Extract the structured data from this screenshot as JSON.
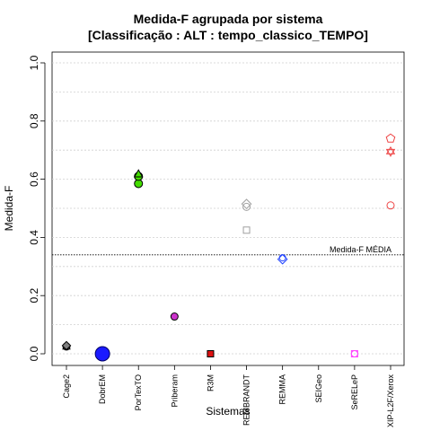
{
  "chart_data": {
    "type": "scatter",
    "title_line1": "Medida-F agrupada por sistema",
    "title_line2": "[Classificação : ALT : tempo_classico_TEMPO]",
    "xlabel": "Sistemas",
    "ylabel": "Medida-F",
    "ylim": [
      0,
      1
    ],
    "y_ticks": [
      "0.0",
      "0.2",
      "0.4",
      "0.6",
      "0.8",
      "1.0"
    ],
    "grid": "horizontal dotted",
    "categories": [
      "Cage2",
      "DobrEM",
      "PorTexTO",
      "Priberam",
      "R3M",
      "REMBRANDT",
      "REMMA",
      "SEIGeo",
      "SeRELeP",
      "XIP-L2F/Xerox"
    ],
    "reference_line": {
      "label": "Medida-F MÉDIA",
      "value": 0.34
    },
    "points": [
      {
        "category": "Cage2",
        "y": 0.025,
        "shape": "circle",
        "fill": "#808080",
        "stroke": "#000000",
        "size": 4
      },
      {
        "category": "Cage2",
        "y": 0.025,
        "shape": "triangle",
        "fill": "#808080",
        "stroke": "#000000",
        "size": 4
      },
      {
        "category": "Cage2",
        "y": 0.028,
        "shape": "diamond",
        "fill": "#808080",
        "stroke": "#000000",
        "size": 4
      },
      {
        "category": "DobrEM",
        "y": 0.0,
        "shape": "circle",
        "fill": "#1a1aff",
        "stroke": "#000066",
        "size": 8
      },
      {
        "category": "PorTexTO",
        "y": 0.585,
        "shape": "circle",
        "fill": "#44dd00",
        "stroke": "#000000",
        "size": 4.5
      },
      {
        "category": "PorTexTO",
        "y": 0.61,
        "shape": "circle",
        "fill": "#44dd00",
        "stroke": "#000000",
        "size": 4.5
      },
      {
        "category": "PorTexTO",
        "y": 0.618,
        "shape": "triangle",
        "fill": "#44dd00",
        "stroke": "#000000",
        "size": 4.5
      },
      {
        "category": "Priberam",
        "y": 0.128,
        "shape": "circle",
        "fill": "#cc33cc",
        "stroke": "#000000",
        "size": 4
      },
      {
        "category": "R3M",
        "y": 0.0,
        "shape": "square",
        "fill": "#dd1111",
        "stroke": "#000000",
        "size": 3.5
      },
      {
        "category": "REMBRANDT",
        "y": 0.505,
        "shape": "circle",
        "fill": "none",
        "stroke": "#a0a0a0",
        "size": 4
      },
      {
        "category": "REMBRANDT",
        "y": 0.515,
        "shape": "diamond",
        "fill": "none",
        "stroke": "#a0a0a0",
        "size": 4.5
      },
      {
        "category": "REMBRANDT",
        "y": 0.425,
        "shape": "square",
        "fill": "none",
        "stroke": "#a0a0a0",
        "size": 3.5
      },
      {
        "category": "REMMA",
        "y": 0.325,
        "shape": "diamond",
        "fill": "none",
        "stroke": "#2244ff",
        "size": 4.5
      },
      {
        "category": "REMMA",
        "y": 0.33,
        "shape": "circle",
        "fill": "none",
        "stroke": "#2244ff",
        "size": 3.5
      },
      {
        "category": "SeRELeP",
        "y": 0.0,
        "shape": "square",
        "fill": "none",
        "stroke": "#ff44ff",
        "size": 3.5
      },
      {
        "category": "SeRELeP",
        "y": 0.0,
        "shape": "circle",
        "fill": "none",
        "stroke": "#ff44ff",
        "size": 3.5
      },
      {
        "category": "XIP-L2F/Xerox",
        "y": 0.51,
        "shape": "circle",
        "fill": "none",
        "stroke": "#ee4444",
        "size": 4
      },
      {
        "category": "XIP-L2F/Xerox",
        "y": 0.695,
        "shape": "star",
        "fill": "none",
        "stroke": "#ee4444",
        "size": 5
      },
      {
        "category": "XIP-L2F/Xerox",
        "y": 0.74,
        "shape": "pentagon",
        "fill": "none",
        "stroke": "#ee4444",
        "size": 5
      }
    ]
  }
}
